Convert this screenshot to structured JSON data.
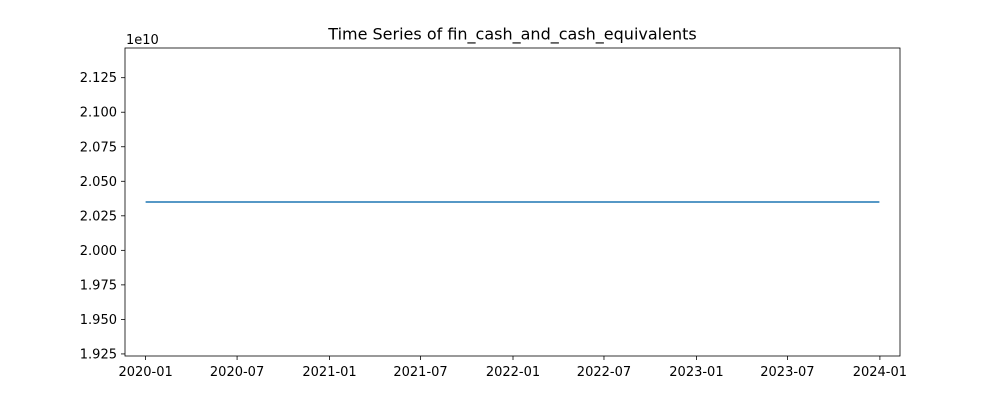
{
  "chart_data": {
    "type": "line",
    "title": "Time Series of fin_cash_and_cash_equivalents",
    "xlabel": "",
    "ylabel": "",
    "y_offset_label": "1e10",
    "y_scale_factor": 10000000000,
    "xlim": [
      "2019-11-21",
      "2024-02-10"
    ],
    "ylim": [
      1.9235,
      2.1465
    ],
    "x_ticks": [
      "2020-01",
      "2020-07",
      "2021-01",
      "2021-07",
      "2022-01",
      "2022-07",
      "2023-01",
      "2023-07",
      "2024-01"
    ],
    "y_ticks": [
      "1.925",
      "1.950",
      "1.975",
      "2.000",
      "2.025",
      "2.050",
      "2.075",
      "2.100",
      "2.125"
    ],
    "grid": false,
    "series": [
      {
        "color": "#1f77b4",
        "x": [
          "2020-01-01",
          "2023-12-31"
        ],
        "y": [
          2.035,
          2.035
        ]
      }
    ]
  }
}
